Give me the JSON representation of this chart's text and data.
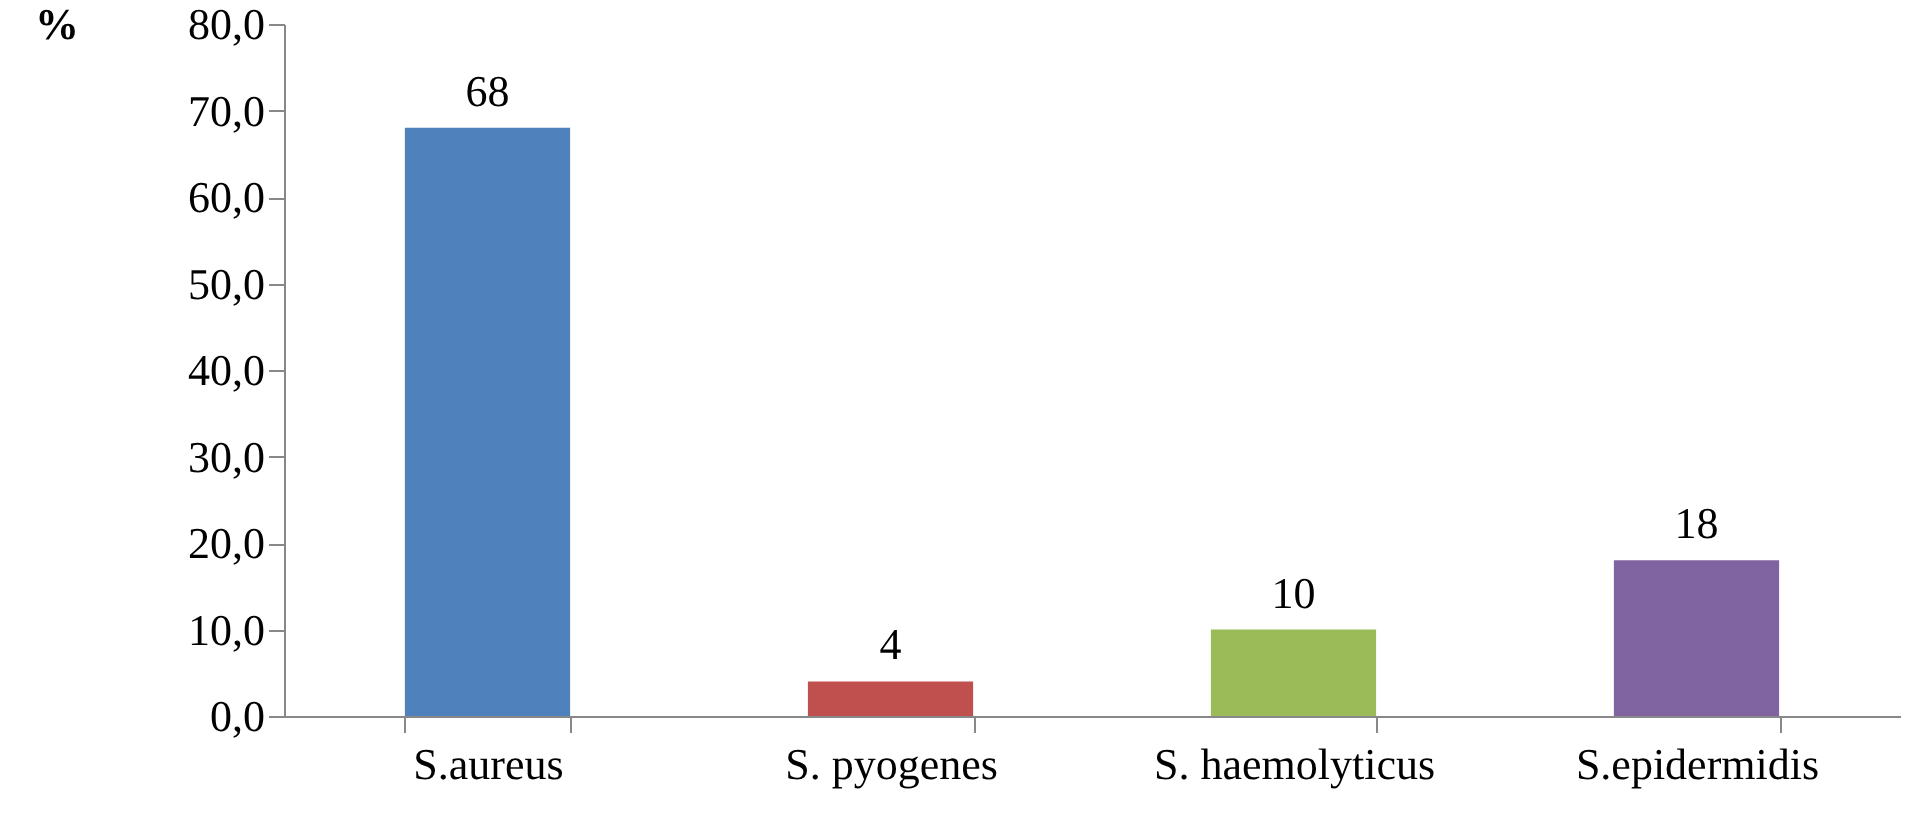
{
  "chart_data": {
    "type": "bar",
    "ylabel": "%",
    "categories": [
      "S.aureus",
      "S. pyogenes",
      "S. haemolyticus",
      "S.epidermidis"
    ],
    "values": [
      68,
      4,
      10,
      18
    ],
    "colors": [
      "#4f81bd",
      "#c0504d",
      "#9bbb59",
      "#8064a2"
    ],
    "ylim": [
      0,
      80
    ],
    "yticks": [
      {
        "value": 0,
        "label": "0,0"
      },
      {
        "value": 10,
        "label": "10,0"
      },
      {
        "value": 20,
        "label": "20,0"
      },
      {
        "value": 30,
        "label": "30,0"
      },
      {
        "value": 40,
        "label": "40,0"
      },
      {
        "value": 50,
        "label": "50,0"
      },
      {
        "value": 60,
        "label": "60,0"
      },
      {
        "value": 70,
        "label": "70,0"
      },
      {
        "value": 80,
        "label": "80,0"
      }
    ],
    "data_labels": true,
    "grid": false
  }
}
